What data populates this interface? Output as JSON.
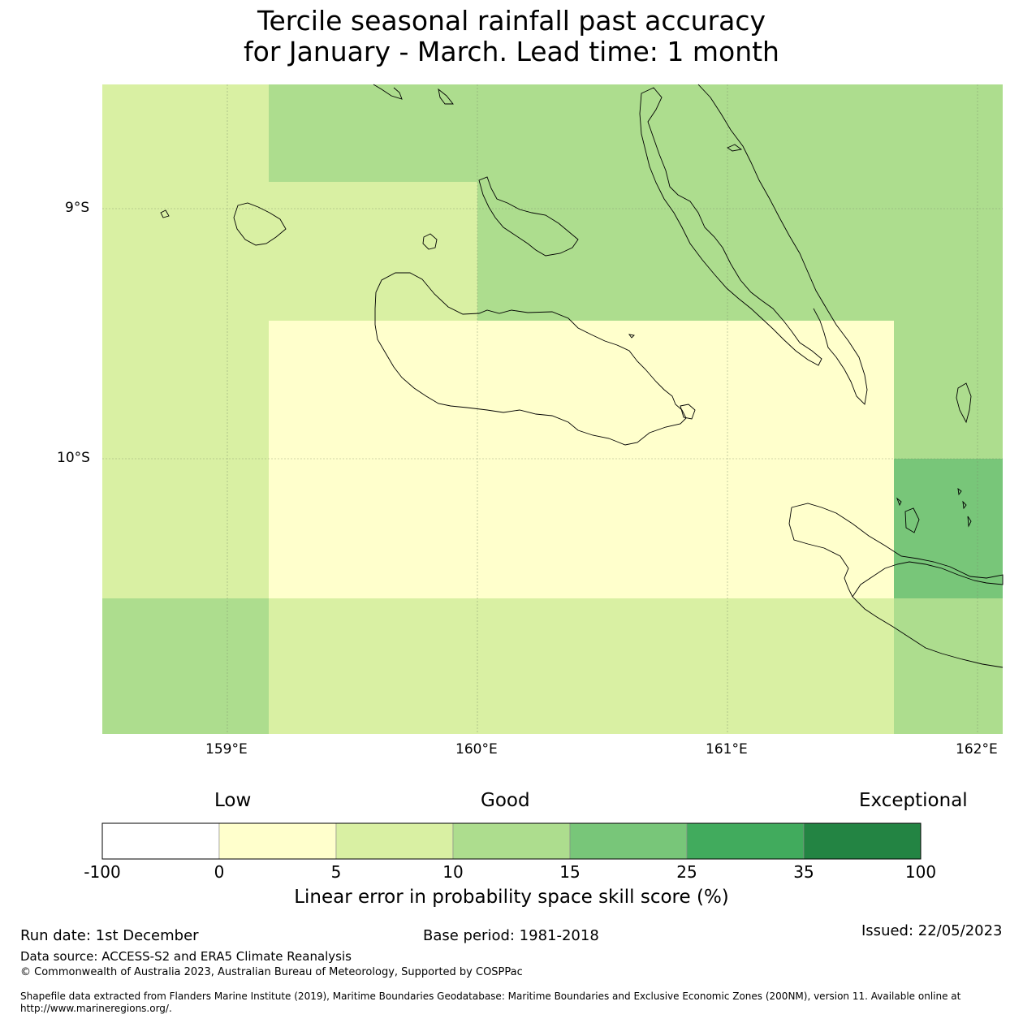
{
  "title_line1": "Tercile seasonal rainfall past accuracy",
  "title_line2": "for January - March. Lead time: 1 month",
  "map": {
    "lat_labels": [
      "9°S",
      "10°S"
    ],
    "lon_labels": [
      "159°E",
      "160°E",
      "161°E",
      "162°E"
    ],
    "extent": {
      "lon": [
        158.5,
        162.1
      ],
      "lat": [
        -8.5,
        -11.1
      ]
    },
    "grid_cells": [
      {
        "lon": [
          158.5,
          159.17
        ],
        "lat": [
          -8.5,
          -10.56
        ],
        "category": "5-10"
      },
      {
        "lon": [
          158.5,
          159.17
        ],
        "lat": [
          -10.56,
          -11.1
        ],
        "category": "10-15"
      },
      {
        "lon": [
          159.17,
          160.0
        ],
        "lat": [
          -8.5,
          -8.89
        ],
        "category": "10-15"
      },
      {
        "lon": [
          159.17,
          160.0
        ],
        "lat": [
          -8.89,
          -9.45
        ],
        "category": "5-10"
      },
      {
        "lon": [
          160.0,
          162.1
        ],
        "lat": [
          -8.5,
          -9.45
        ],
        "category": "10-15"
      },
      {
        "lon": [
          159.17,
          161.67
        ],
        "lat": [
          -9.45,
          -10.56
        ],
        "category": "0-5"
      },
      {
        "lon": [
          161.67,
          162.1
        ],
        "lat": [
          -9.45,
          -10.0
        ],
        "category": "10-15"
      },
      {
        "lon": [
          161.67,
          162.1
        ],
        "lat": [
          -10.0,
          -10.56
        ],
        "category": "15-25"
      },
      {
        "lon": [
          159.17,
          161.67
        ],
        "lat": [
          -10.56,
          -11.1
        ],
        "category": "5-10"
      },
      {
        "lon": [
          161.67,
          162.1
        ],
        "lat": [
          -10.56,
          -11.1
        ],
        "category": "10-15"
      }
    ]
  },
  "colorbar": {
    "label_low": "Low",
    "label_good": "Good",
    "label_exceptional": "Exceptional",
    "ticks": [
      "-100",
      "0",
      "5",
      "10",
      "15",
      "25",
      "35",
      "100"
    ],
    "colors": [
      "#ffffff",
      "#ffffcc",
      "#d9f0a3",
      "#addd8e",
      "#78c679",
      "#41ab5d",
      "#238443"
    ],
    "title": "Linear error in probability space skill score (%)"
  },
  "footer": {
    "run_date": "Run date: 1st December",
    "base_period": "Base period: 1981-2018",
    "issued": "Issued: 22/05/2023",
    "data_source": "Data source: ACCESS-S2 and ERA5 Climate Reanalysis",
    "copyright": "© Commonwealth of Australia 2023, Australian Bureau of Meteorology, Supported by COSPPac",
    "shapefile_line1": "Shapefile data extracted from Flanders Marine Institute (2019), Maritime Boundaries Geodatabase: Maritime Boundaries and Exclusive Economic Zones (200NM), version 11. Available online at",
    "shapefile_line2": "http://www.marineregions.org/."
  }
}
